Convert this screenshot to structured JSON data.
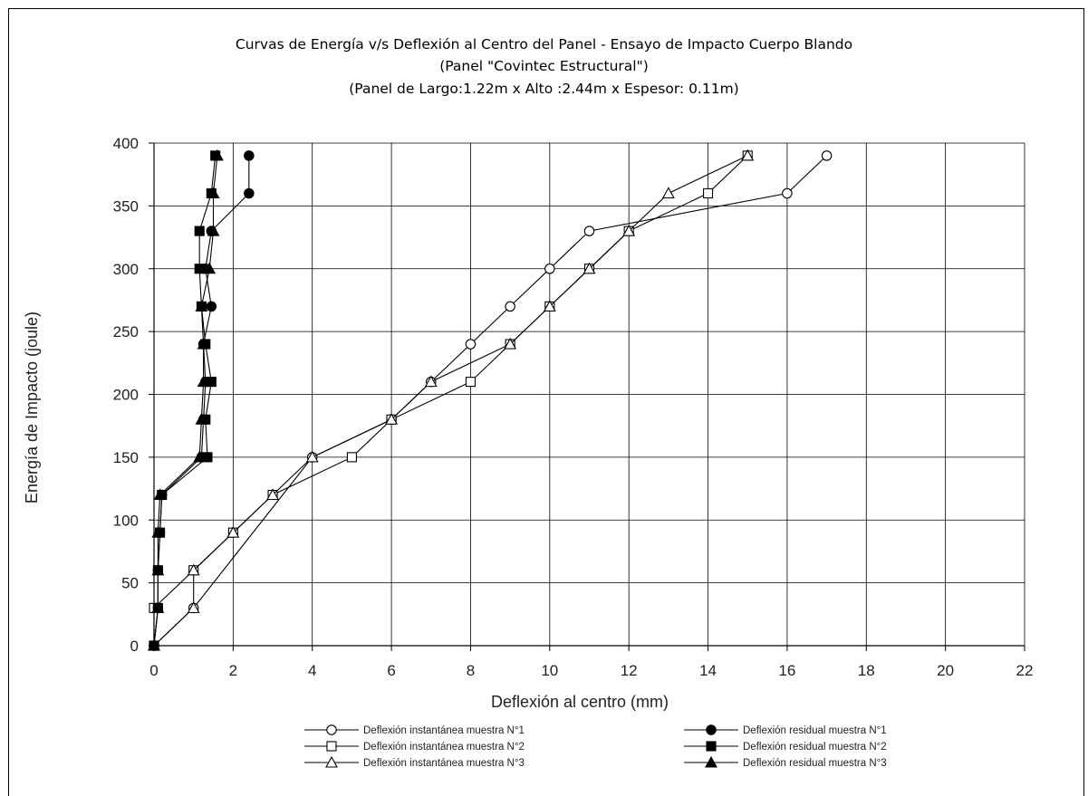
{
  "chart_data": {
    "type": "line",
    "title_lines": [
      "Curvas de Energía v/s Deflexión al Centro del Panel - Ensayo de Impacto Cuerpo Blando",
      "(Panel \"Covintec Estructural\")",
      "(Panel de Largo:1.22m x Alto :2.44m x Espesor: 0.11m)"
    ],
    "xlabel": "Deflexión al centro  (mm)",
    "ylabel": "Energía de Impacto (joule)",
    "xlim": [
      0,
      22
    ],
    "ylim": [
      0,
      400
    ],
    "xticks": [
      "0",
      "2",
      "4",
      "6",
      "8",
      "10",
      "12",
      "14",
      "16",
      "18",
      "20",
      "22"
    ],
    "yticks": [
      "0",
      "50",
      "100",
      "150",
      "200",
      "250",
      "300",
      "350",
      "400"
    ],
    "grid": true,
    "legend_position": "bottom",
    "series": [
      {
        "name": "Deflexión instantánea muestra N°1",
        "marker": "circle",
        "filled": false,
        "points": [
          [
            0,
            0
          ],
          [
            1,
            30
          ],
          [
            4,
            150
          ],
          [
            6,
            180
          ],
          [
            7,
            210
          ],
          [
            8,
            240
          ],
          [
            9,
            270
          ],
          [
            10,
            300
          ],
          [
            11,
            330
          ],
          [
            16,
            360
          ],
          [
            17,
            390
          ]
        ]
      },
      {
        "name": "Deflexión instantánea muestra N°2",
        "marker": "square",
        "filled": false,
        "points": [
          [
            0,
            0
          ],
          [
            0,
            30
          ],
          [
            1,
            60
          ],
          [
            2,
            90
          ],
          [
            3,
            120
          ],
          [
            5,
            150
          ],
          [
            6,
            180
          ],
          [
            8,
            210
          ],
          [
            9,
            240
          ],
          [
            10,
            270
          ],
          [
            11,
            300
          ],
          [
            12,
            330
          ],
          [
            14,
            360
          ],
          [
            15,
            390
          ]
        ]
      },
      {
        "name": "Deflexión instantánea muestra N°3",
        "marker": "triangle",
        "filled": false,
        "points": [
          [
            0,
            0
          ],
          [
            1,
            30
          ],
          [
            1,
            60
          ],
          [
            2,
            90
          ],
          [
            3,
            120
          ],
          [
            4,
            150
          ],
          [
            6,
            180
          ],
          [
            7,
            210
          ],
          [
            9,
            240
          ],
          [
            10,
            270
          ],
          [
            11,
            300
          ],
          [
            12,
            330
          ],
          [
            13,
            360
          ],
          [
            15,
            390
          ]
        ]
      },
      {
        "name": "Deflexión residual muestra N°1",
        "marker": "circle",
        "filled": true,
        "points": [
          [
            0,
            0
          ],
          [
            0.1,
            30
          ],
          [
            0.1,
            60
          ],
          [
            0.15,
            90
          ],
          [
            0.2,
            120
          ],
          [
            1.2,
            150
          ],
          [
            1.25,
            180
          ],
          [
            1.3,
            210
          ],
          [
            1.25,
            240
          ],
          [
            1.45,
            270
          ],
          [
            1.3,
            300
          ],
          [
            1.45,
            330
          ],
          [
            2.4,
            360
          ],
          [
            2.4,
            390
          ]
        ]
      },
      {
        "name": "Deflexión residual muestra N°2",
        "marker": "square",
        "filled": true,
        "points": [
          [
            0,
            0
          ],
          [
            0.1,
            30
          ],
          [
            0.1,
            60
          ],
          [
            0.15,
            90
          ],
          [
            0.2,
            120
          ],
          [
            1.35,
            150
          ],
          [
            1.3,
            180
          ],
          [
            1.45,
            210
          ],
          [
            1.3,
            240
          ],
          [
            1.2,
            270
          ],
          [
            1.15,
            300
          ],
          [
            1.15,
            330
          ],
          [
            1.45,
            360
          ],
          [
            1.55,
            390
          ]
        ]
      },
      {
        "name": "Deflexión residual muestra N°3",
        "marker": "triangle",
        "filled": true,
        "points": [
          [
            0,
            0
          ],
          [
            0.1,
            30
          ],
          [
            0.1,
            60
          ],
          [
            0.1,
            90
          ],
          [
            0.15,
            120
          ],
          [
            1.15,
            150
          ],
          [
            1.2,
            180
          ],
          [
            1.25,
            210
          ],
          [
            1.25,
            240
          ],
          [
            1.2,
            270
          ],
          [
            1.4,
            300
          ],
          [
            1.5,
            330
          ],
          [
            1.5,
            360
          ],
          [
            1.6,
            390
          ]
        ]
      }
    ]
  }
}
